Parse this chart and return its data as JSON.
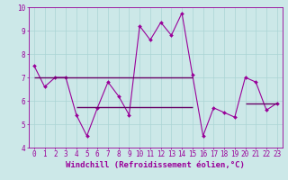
{
  "xlabel": "Windchill (Refroidissement éolien,°C)",
  "x_values": [
    0,
    1,
    2,
    3,
    4,
    5,
    6,
    7,
    8,
    9,
    10,
    11,
    12,
    13,
    14,
    15,
    16,
    17,
    18,
    19,
    20,
    21,
    22,
    23
  ],
  "y_values": [
    7.5,
    6.6,
    7.0,
    7.0,
    5.4,
    4.5,
    5.7,
    6.8,
    6.2,
    5.4,
    9.2,
    8.6,
    9.35,
    8.8,
    9.75,
    7.1,
    4.5,
    5.7,
    5.5,
    5.3,
    7.0,
    6.8,
    5.6,
    5.9
  ],
  "hline1_y": 7.0,
  "hline1_x_start": 0,
  "hline1_x_end": 15,
  "hline2_y": 5.75,
  "hline2_x_start": 4,
  "hline2_x_end": 15,
  "hline3_y": 5.9,
  "hline3_x_start": 20,
  "hline3_x_end": 23,
  "ylim": [
    4,
    10
  ],
  "xlim": [
    -0.5,
    23.5
  ],
  "line_color": "#990099",
  "hline_color": "#660066",
  "bg_color": "#cce8e8",
  "grid_color": "#aad4d4",
  "tick_label_fontsize": 5.5,
  "xlabel_fontsize": 6.5
}
